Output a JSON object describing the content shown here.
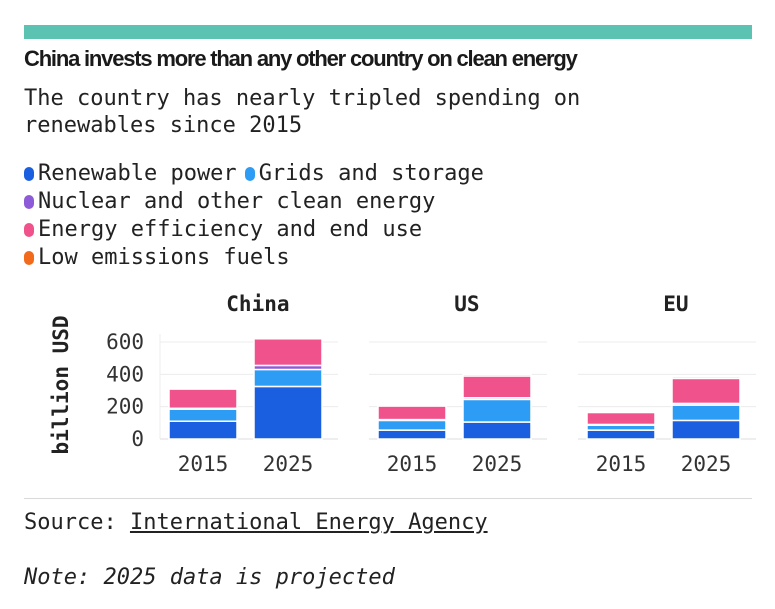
{
  "header": {
    "title": "China invests more than any other country on clean energy",
    "subtitle": "The country has nearly tripled spending on renewables since 2015"
  },
  "colors": {
    "topbar": "#5cc3b2",
    "renewable": "#1a5fe0",
    "grids": "#2c9cf5",
    "nuclear": "#8e5bd8",
    "efficiency": "#f0528c",
    "low_emissions": "#f26b1d"
  },
  "legend": {
    "renewable": "Renewable power",
    "grids": "Grids and storage",
    "nuclear": "Nuclear and other clean energy",
    "efficiency": "Energy efficiency and end use",
    "low_emissions": "Low emissions fuels"
  },
  "footer": {
    "source_label": "Source:",
    "source_link": "International Energy Agency",
    "note": "Note: 2025 data is projected"
  },
  "chart_data": {
    "type": "bar",
    "stacked": true,
    "ylabel": "billion USD",
    "ylim": [
      0,
      650
    ],
    "yticks": [
      0,
      200,
      400,
      600
    ],
    "grid": true,
    "panels": [
      {
        "title": "China",
        "categories": [
          "2015",
          "2025"
        ],
        "series": [
          {
            "name": "Renewable power",
            "key": "renewable",
            "values": [
              110,
              325
            ]
          },
          {
            "name": "Grids and storage",
            "key": "grids",
            "values": [
              75,
              105
            ]
          },
          {
            "name": "Nuclear and other clean energy",
            "key": "nuclear",
            "values": [
              5,
              25
            ]
          },
          {
            "name": "Energy efficiency and end use",
            "key": "efficiency",
            "values": [
              120,
              165
            ]
          },
          {
            "name": "Low emissions fuels",
            "key": "low_emissions",
            "values": [
              2,
              8
            ]
          }
        ]
      },
      {
        "title": "US",
        "categories": [
          "2015",
          "2025"
        ],
        "series": [
          {
            "name": "Renewable power",
            "key": "renewable",
            "values": [
              55,
              105
            ]
          },
          {
            "name": "Grids and storage",
            "key": "grids",
            "values": [
              60,
              140
            ]
          },
          {
            "name": "Nuclear and other clean energy",
            "key": "nuclear",
            "values": [
              5,
              10
            ]
          },
          {
            "name": "Energy efficiency and end use",
            "key": "efficiency",
            "values": [
              85,
              135
            ]
          },
          {
            "name": "Low emissions fuels",
            "key": "low_emissions",
            "values": [
              2,
              10
            ]
          }
        ]
      },
      {
        "title": "EU",
        "categories": [
          "2015",
          "2025"
        ],
        "series": [
          {
            "name": "Renewable power",
            "key": "renewable",
            "values": [
              55,
              115
            ]
          },
          {
            "name": "Grids and storage",
            "key": "grids",
            "values": [
              30,
              95
            ]
          },
          {
            "name": "Nuclear and other clean energy",
            "key": "nuclear",
            "values": [
              5,
              10
            ]
          },
          {
            "name": "Energy efficiency and end use",
            "key": "efficiency",
            "values": [
              75,
              155
            ]
          },
          {
            "name": "Low emissions fuels",
            "key": "low_emissions",
            "values": [
              2,
              10
            ]
          }
        ]
      }
    ]
  }
}
